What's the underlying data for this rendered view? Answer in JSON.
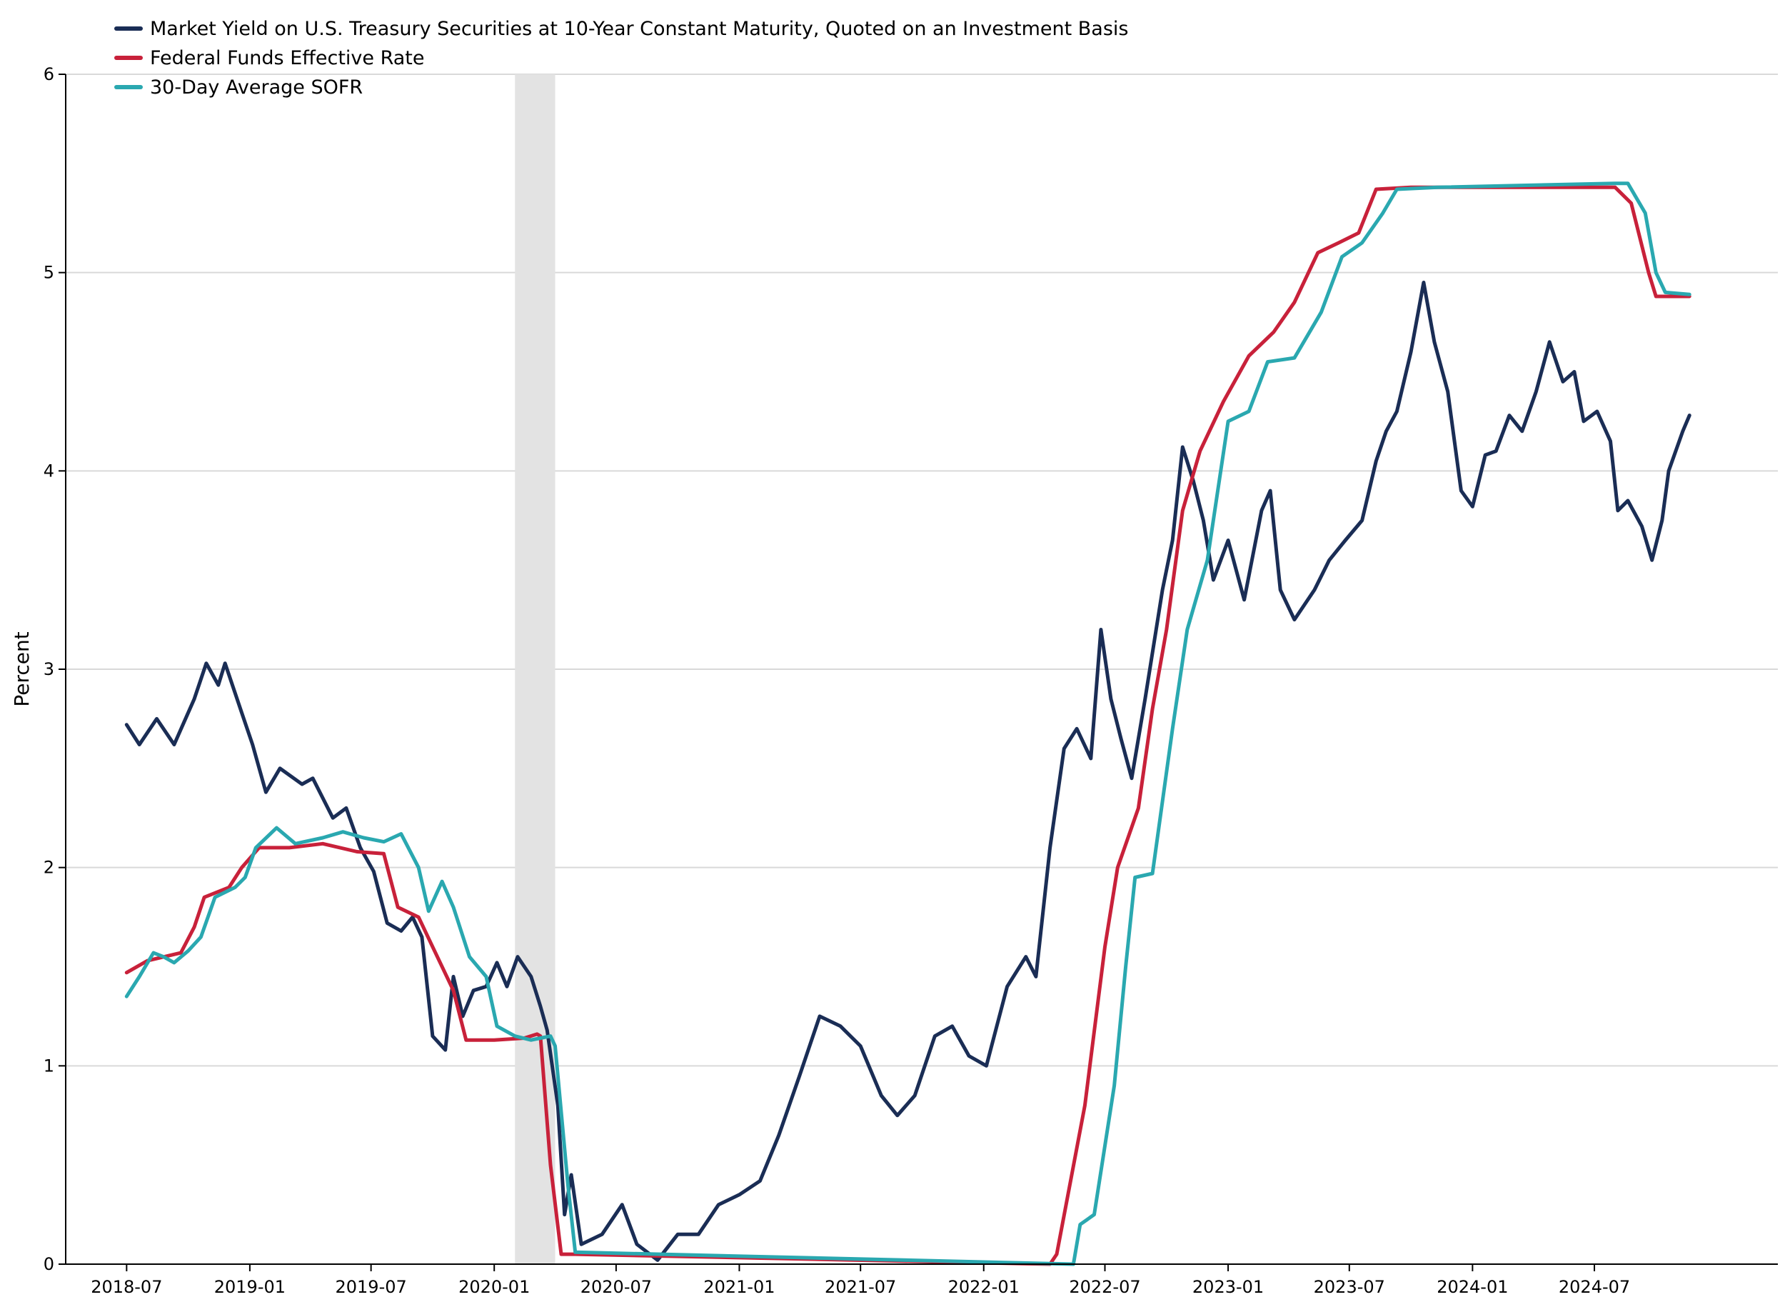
{
  "chart_data": {
    "type": "line",
    "title": "",
    "xlabel": "",
    "ylabel": "Percent",
    "ylim": [
      0,
      6
    ],
    "yticks": [
      "0",
      "1",
      "2",
      "3",
      "4",
      "5",
      "6"
    ],
    "xlim": [
      "2018-04",
      "2025-04"
    ],
    "xticks": [
      "2018-07",
      "2019-01",
      "2019-07",
      "2020-01",
      "2020-07",
      "2021-01",
      "2021-07",
      "2022-01",
      "2022-07",
      "2023-01",
      "2023-07",
      "2024-01",
      "2024-07"
    ],
    "grid": "horizontal",
    "legend_position": "top-left",
    "recession_shading": {
      "start": "2020-02",
      "end": "2020-04"
    },
    "series": [
      {
        "name": "Market Yield on U.S. Treasury Securities at 10-Year Constant Maturity, Quoted on an Investment Basis",
        "color": "#1a2d55",
        "points": [
          [
            "2018-07-01",
            2.72
          ],
          [
            "2018-07-20",
            2.62
          ],
          [
            "2018-08-15",
            2.75
          ],
          [
            "2018-09-10",
            2.62
          ],
          [
            "2018-10-10",
            2.85
          ],
          [
            "2018-10-28",
            3.03
          ],
          [
            "2018-11-15",
            2.92
          ],
          [
            "2018-11-25",
            3.03
          ],
          [
            "2018-12-20",
            2.78
          ],
          [
            "2019-01-05",
            2.62
          ],
          [
            "2019-01-25",
            2.38
          ],
          [
            "2019-02-15",
            2.5
          ],
          [
            "2019-03-20",
            2.42
          ],
          [
            "2019-04-05",
            2.45
          ],
          [
            "2019-05-05",
            2.25
          ],
          [
            "2019-05-25",
            2.3
          ],
          [
            "2019-06-15",
            2.1
          ],
          [
            "2019-07-05",
            1.98
          ],
          [
            "2019-07-25",
            1.72
          ],
          [
            "2019-08-15",
            1.68
          ],
          [
            "2019-09-01",
            1.75
          ],
          [
            "2019-09-15",
            1.65
          ],
          [
            "2019-10-01",
            1.15
          ],
          [
            "2019-10-20",
            1.08
          ],
          [
            "2019-11-01",
            1.45
          ],
          [
            "2019-11-15",
            1.25
          ],
          [
            "2019-12-01",
            1.38
          ],
          [
            "2019-12-20",
            1.4
          ],
          [
            "2020-01-05",
            1.52
          ],
          [
            "2020-01-20",
            1.4
          ],
          [
            "2020-02-05",
            1.55
          ],
          [
            "2020-02-25",
            1.45
          ],
          [
            "2020-03-10",
            1.3
          ],
          [
            "2020-03-20",
            1.18
          ],
          [
            "2020-04-05",
            0.8
          ],
          [
            "2020-04-15",
            0.25
          ],
          [
            "2020-04-25",
            0.45
          ],
          [
            "2020-05-10",
            0.1
          ],
          [
            "2020-06-10",
            0.15
          ],
          [
            "2020-07-10",
            0.3
          ],
          [
            "2020-08-01",
            0.1
          ],
          [
            "2020-09-01",
            0.02
          ],
          [
            "2020-10-01",
            0.15
          ],
          [
            "2020-11-01",
            0.15
          ],
          [
            "2020-12-01",
            0.3
          ],
          [
            "2021-01-01",
            0.35
          ],
          [
            "2021-02-01",
            0.42
          ],
          [
            "2021-03-01",
            0.65
          ],
          [
            "2021-04-01",
            0.95
          ],
          [
            "2021-05-01",
            1.25
          ],
          [
            "2021-06-01",
            1.2
          ],
          [
            "2021-07-01",
            1.1
          ],
          [
            "2021-08-01",
            0.85
          ],
          [
            "2021-08-25",
            0.75
          ],
          [
            "2021-09-20",
            0.85
          ],
          [
            "2021-10-20",
            1.15
          ],
          [
            "2021-11-15",
            1.2
          ],
          [
            "2021-12-10",
            1.05
          ],
          [
            "2022-01-05",
            1.0
          ],
          [
            "2022-02-05",
            1.4
          ],
          [
            "2022-03-05",
            1.55
          ],
          [
            "2022-03-20",
            1.45
          ],
          [
            "2022-04-10",
            2.1
          ],
          [
            "2022-05-01",
            2.6
          ],
          [
            "2022-05-20",
            2.7
          ],
          [
            "2022-06-10",
            2.55
          ],
          [
            "2022-06-25",
            3.2
          ],
          [
            "2022-07-10",
            2.85
          ],
          [
            "2022-07-25",
            2.65
          ],
          [
            "2022-08-10",
            2.45
          ],
          [
            "2022-08-30",
            2.85
          ],
          [
            "2022-09-25",
            3.4
          ],
          [
            "2022-10-10",
            3.65
          ],
          [
            "2022-10-25",
            4.12
          ],
          [
            "2022-11-10",
            3.95
          ],
          [
            "2022-11-25",
            3.75
          ],
          [
            "2022-12-10",
            3.45
          ],
          [
            "2023-01-01",
            3.65
          ],
          [
            "2023-01-25",
            3.35
          ],
          [
            "2023-02-20",
            3.8
          ],
          [
            "2023-03-05",
            3.9
          ],
          [
            "2023-03-20",
            3.4
          ],
          [
            "2023-04-10",
            3.25
          ],
          [
            "2023-05-10",
            3.4
          ],
          [
            "2023-06-01",
            3.55
          ],
          [
            "2023-06-25",
            3.65
          ],
          [
            "2023-07-20",
            3.75
          ],
          [
            "2023-08-10",
            4.05
          ],
          [
            "2023-08-25",
            4.2
          ],
          [
            "2023-09-10",
            4.3
          ],
          [
            "2023-10-01",
            4.6
          ],
          [
            "2023-10-20",
            4.95
          ],
          [
            "2023-11-05",
            4.65
          ],
          [
            "2023-11-25",
            4.4
          ],
          [
            "2023-12-15",
            3.9
          ],
          [
            "2024-01-01",
            3.82
          ],
          [
            "2024-01-20",
            4.08
          ],
          [
            "2024-02-05",
            4.1
          ],
          [
            "2024-02-25",
            4.28
          ],
          [
            "2024-03-15",
            4.2
          ],
          [
            "2024-04-05",
            4.4
          ],
          [
            "2024-04-25",
            4.65
          ],
          [
            "2024-05-15",
            4.45
          ],
          [
            "2024-06-01",
            4.5
          ],
          [
            "2024-06-15",
            4.25
          ],
          [
            "2024-07-05",
            4.3
          ],
          [
            "2024-07-25",
            4.15
          ],
          [
            "2024-08-05",
            3.8
          ],
          [
            "2024-08-20",
            3.85
          ],
          [
            "2024-09-10",
            3.72
          ],
          [
            "2024-09-25",
            3.55
          ],
          [
            "2024-10-10",
            3.75
          ],
          [
            "2024-10-20",
            4.0
          ],
          [
            "2024-11-10",
            4.2
          ],
          [
            "2024-11-20",
            4.28
          ]
        ]
      },
      {
        "name": "Federal Funds Effective Rate",
        "color": "#c8213a",
        "points": [
          [
            "2018-07-01",
            1.47
          ],
          [
            "2018-08-01",
            1.53
          ],
          [
            "2018-09-20",
            1.57
          ],
          [
            "2018-10-10",
            1.7
          ],
          [
            "2018-10-25",
            1.85
          ],
          [
            "2018-12-01",
            1.9
          ],
          [
            "2018-12-20",
            2.0
          ],
          [
            "2019-01-15",
            2.1
          ],
          [
            "2019-03-01",
            2.1
          ],
          [
            "2019-04-20",
            2.12
          ],
          [
            "2019-06-10",
            2.08
          ],
          [
            "2019-07-20",
            2.07
          ],
          [
            "2019-08-10",
            1.8
          ],
          [
            "2019-09-10",
            1.75
          ],
          [
            "2019-10-01",
            1.6
          ],
          [
            "2019-11-01",
            1.38
          ],
          [
            "2019-11-20",
            1.13
          ],
          [
            "2020-01-01",
            1.13
          ],
          [
            "2020-02-15",
            1.14
          ],
          [
            "2020-03-05",
            1.16
          ],
          [
            "2020-03-10",
            1.15
          ],
          [
            "2020-03-25",
            0.5
          ],
          [
            "2020-04-10",
            0.05
          ],
          [
            "2020-05-01",
            0.05
          ],
          [
            "2022-04-10",
            0.0
          ],
          [
            "2022-04-20",
            0.05
          ],
          [
            "2022-06-01",
            0.8
          ],
          [
            "2022-07-01",
            1.6
          ],
          [
            "2022-07-20",
            2.0
          ],
          [
            "2022-08-20",
            2.3
          ],
          [
            "2022-09-10",
            2.8
          ],
          [
            "2022-10-01",
            3.2
          ],
          [
            "2022-10-25",
            3.8
          ],
          [
            "2022-11-20",
            4.1
          ],
          [
            "2022-12-25",
            4.35
          ],
          [
            "2023-02-01",
            4.58
          ],
          [
            "2023-03-10",
            4.7
          ],
          [
            "2023-04-10",
            4.85
          ],
          [
            "2023-05-15",
            5.1
          ],
          [
            "2023-06-15",
            5.15
          ],
          [
            "2023-07-15",
            5.2
          ],
          [
            "2023-08-10",
            5.42
          ],
          [
            "2023-10-01",
            5.43
          ],
          [
            "2024-08-01",
            5.43
          ],
          [
            "2024-08-25",
            5.35
          ],
          [
            "2024-09-20",
            5.0
          ],
          [
            "2024-10-01",
            4.88
          ],
          [
            "2024-11-20",
            4.88
          ]
        ]
      },
      {
        "name": "30-Day Average SOFR",
        "color": "#2aa8b0",
        "points": [
          [
            "2018-07-01",
            1.35
          ],
          [
            "2018-07-20",
            1.45
          ],
          [
            "2018-08-10",
            1.57
          ],
          [
            "2018-08-25",
            1.55
          ],
          [
            "2018-09-10",
            1.52
          ],
          [
            "2018-10-01",
            1.58
          ],
          [
            "2018-10-20",
            1.65
          ],
          [
            "2018-11-10",
            1.85
          ],
          [
            "2018-12-10",
            1.9
          ],
          [
            "2018-12-25",
            1.95
          ],
          [
            "2019-01-10",
            2.1
          ],
          [
            "2019-02-10",
            2.2
          ],
          [
            "2019-03-10",
            2.12
          ],
          [
            "2019-04-20",
            2.15
          ],
          [
            "2019-05-20",
            2.18
          ],
          [
            "2019-06-20",
            2.15
          ],
          [
            "2019-07-20",
            2.13
          ],
          [
            "2019-08-15",
            2.17
          ],
          [
            "2019-09-10",
            2.0
          ],
          [
            "2019-09-25",
            1.78
          ],
          [
            "2019-10-15",
            1.93
          ],
          [
            "2019-11-01",
            1.8
          ],
          [
            "2019-11-25",
            1.55
          ],
          [
            "2019-12-20",
            1.45
          ],
          [
            "2020-01-05",
            1.2
          ],
          [
            "2020-02-01",
            1.15
          ],
          [
            "2020-02-25",
            1.13
          ],
          [
            "2020-03-10",
            1.14
          ],
          [
            "2020-03-25",
            1.15
          ],
          [
            "2020-04-01",
            1.1
          ],
          [
            "2020-04-20",
            0.4
          ],
          [
            "2020-05-01",
            0.06
          ],
          [
            "2022-05-15",
            0.0
          ],
          [
            "2022-05-25",
            0.2
          ],
          [
            "2022-06-15",
            0.25
          ],
          [
            "2022-07-15",
            0.9
          ],
          [
            "2022-08-01",
            1.5
          ],
          [
            "2022-08-15",
            1.95
          ],
          [
            "2022-09-10",
            1.97
          ],
          [
            "2022-10-10",
            2.7
          ],
          [
            "2022-11-01",
            3.2
          ],
          [
            "2022-12-01",
            3.55
          ],
          [
            "2023-01-01",
            4.25
          ],
          [
            "2023-02-01",
            4.3
          ],
          [
            "2023-03-01",
            4.55
          ],
          [
            "2023-04-10",
            4.57
          ],
          [
            "2023-05-20",
            4.8
          ],
          [
            "2023-06-20",
            5.08
          ],
          [
            "2023-07-20",
            5.15
          ],
          [
            "2023-08-20",
            5.3
          ],
          [
            "2023-09-10",
            5.42
          ],
          [
            "2023-11-10",
            5.43
          ],
          [
            "2024-08-01",
            5.45
          ],
          [
            "2024-08-20",
            5.45
          ],
          [
            "2024-09-15",
            5.3
          ],
          [
            "2024-10-01",
            5.0
          ],
          [
            "2024-10-15",
            4.9
          ],
          [
            "2024-11-20",
            4.89
          ]
        ]
      }
    ]
  }
}
